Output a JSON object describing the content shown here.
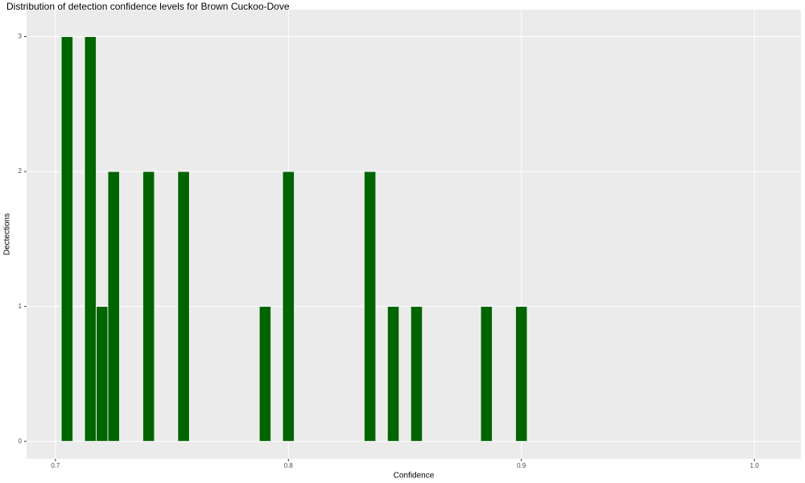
{
  "chart_data": {
    "type": "histogram",
    "title": "Distribution of detection confidence levels for Brown Cuckoo-Dove",
    "x_label": "Confidence",
    "y_label": "Dectections",
    "color": "#006400",
    "bins": [
      0.7025,
      0.7075,
      0.7125,
      0.7175,
      0.7225,
      0.7275,
      0.7325,
      0.7375,
      0.7425,
      0.7475,
      0.7525,
      0.7575,
      0.7625,
      0.7675,
      0.7725,
      0.7775,
      0.7825,
      0.7875,
      0.7925,
      0.7975,
      0.8025,
      0.8075,
      0.8125,
      0.8175,
      0.8225,
      0.8275,
      0.8325,
      0.8375,
      0.8425,
      0.8475,
      0.8525,
      0.8575,
      0.8625,
      0.8675,
      0.8725,
      0.8775,
      0.8825,
      0.8875,
      0.8925,
      0.8975,
      0.9025
    ],
    "values": [
      3,
      0,
      3,
      1,
      2,
      0,
      0,
      2,
      0,
      0,
      2,
      0,
      0,
      0,
      0,
      0,
      0,
      1,
      0,
      2,
      0,
      0,
      0,
      0,
      0,
      0,
      2,
      0,
      1,
      0,
      1,
      0,
      0,
      0,
      0,
      0,
      1,
      0,
      0,
      1
    ],
    "xlim": [
      0.6876,
      1.02
    ],
    "ylim": [
      -0.13,
      3.2
    ],
    "xticks": [
      0.7,
      0.8,
      0.9,
      {
        "value": 1,
        "label": "1.0"
      }
    ],
    "yticks": [
      0,
      1,
      2,
      3
    ],
    "grid": true
  }
}
